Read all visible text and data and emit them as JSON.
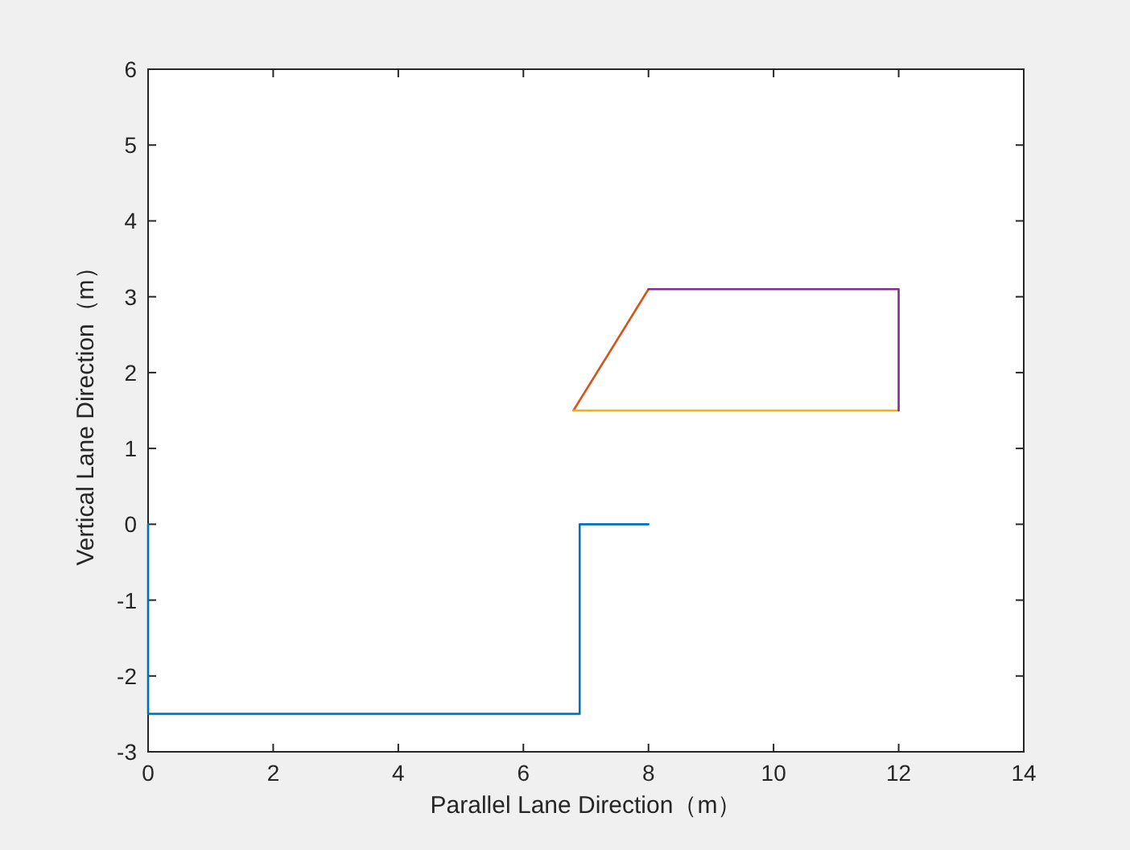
{
  "chart_data": {
    "type": "line",
    "xlabel": "Parallel Lane Direction（m）",
    "ylabel": "Vertical Lane Direction（m）",
    "xlim": [
      0,
      14
    ],
    "ylim": [
      -3,
      6
    ],
    "xticks": [
      0,
      2,
      4,
      6,
      8,
      10,
      12,
      14
    ],
    "yticks": [
      -3,
      -2,
      -1,
      0,
      1,
      2,
      3,
      4,
      5,
      6
    ],
    "grid": false,
    "marker": "none",
    "line_style": "solid",
    "series": [
      {
        "color": "#0072bd",
        "x": [
          0,
          0,
          6.9,
          6.9,
          8
        ],
        "values": [
          0,
          -2.5,
          -2.5,
          0,
          0
        ]
      },
      {
        "color": "#d95319",
        "x": [
          6.8,
          8
        ],
        "values": [
          1.5,
          3.1
        ]
      },
      {
        "color": "#edb120",
        "x": [
          6.8,
          12
        ],
        "values": [
          1.5,
          1.5
        ]
      },
      {
        "color": "#7e2f8e",
        "x": [
          8,
          12,
          12
        ],
        "values": [
          3.1,
          3.1,
          1.5
        ]
      }
    ]
  }
}
